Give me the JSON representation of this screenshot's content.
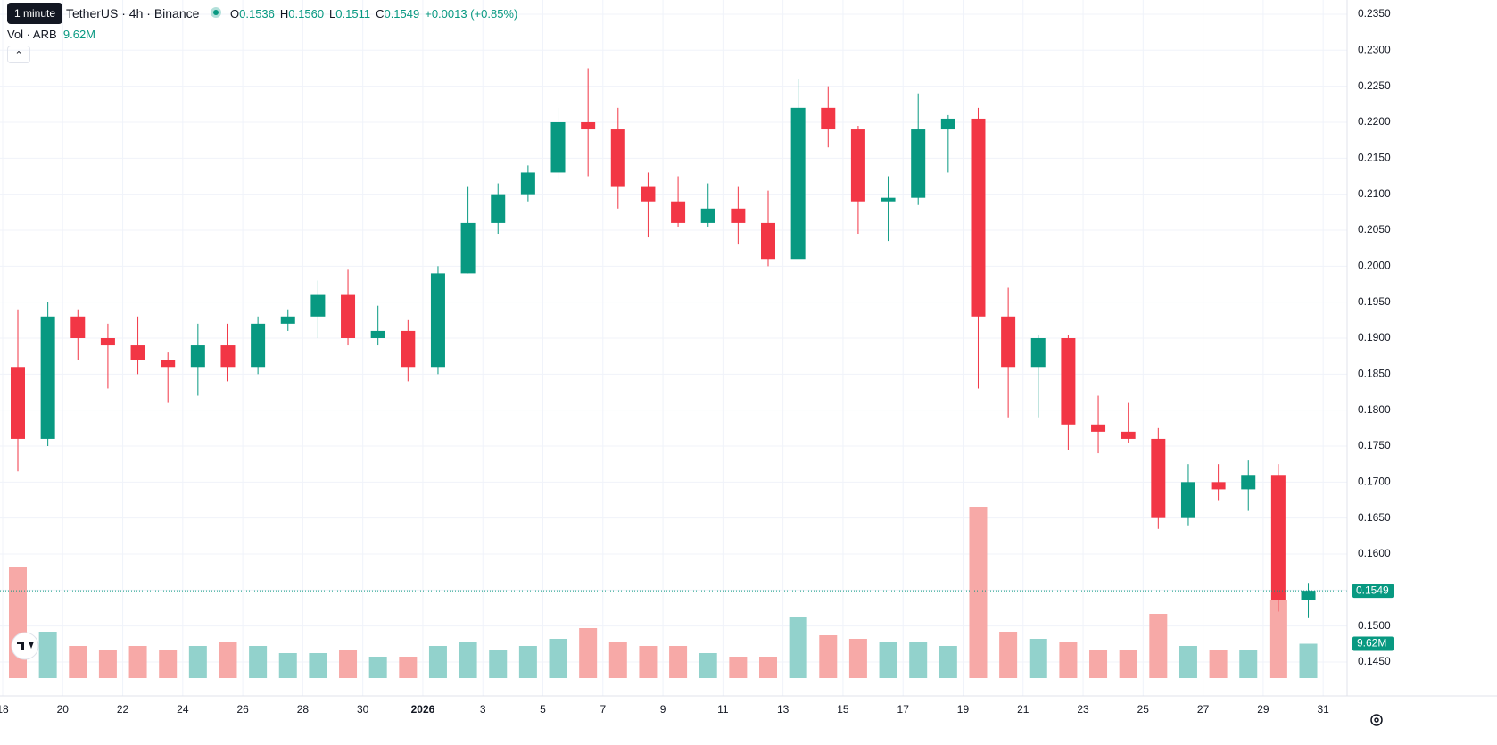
{
  "chart_data": {
    "type": "candlestick",
    "title": "TetherUS · 4h · Binance",
    "tooltip": "1 minute",
    "legend": [
      {
        "name": "O",
        "label": "0.1536"
      },
      {
        "name": "H",
        "label": "0.1560"
      },
      {
        "name": "L",
        "label": "0.1511"
      },
      {
        "name": "C",
        "label": "0.1549"
      }
    ],
    "change": "+0.0013 (+0.85%)",
    "categories": [
      "18",
      null,
      "20",
      null,
      "22",
      null,
      "24",
      null,
      "26",
      null,
      "28",
      null,
      "30",
      null,
      "2026",
      null,
      "3",
      null,
      "5",
      null,
      "7",
      null,
      "9",
      null,
      "11",
      null,
      "13",
      null,
      "15",
      null,
      "17",
      null,
      "19",
      null,
      "21",
      null,
      "23",
      null,
      "25",
      null,
      "27",
      null,
      "29",
      null,
      "31"
    ],
    "open": [
      0.186,
      0.176,
      0.193,
      0.19,
      0.189,
      0.187,
      0.186,
      0.189,
      0.186,
      0.192,
      0.193,
      0.196,
      0.19,
      0.191,
      0.186,
      0.199,
      0.206,
      0.21,
      0.213,
      0.22,
      0.219,
      0.211,
      0.209,
      0.206,
      0.208,
      0.206,
      0.201,
      0.222,
      0.219,
      0.209,
      0.2095,
      0.219,
      0.2205,
      0.193,
      0.186,
      0.19,
      0.178,
      0.177,
      0.176,
      0.165,
      0.17,
      0.169,
      0.171,
      0.1536,
      null
    ],
    "high": [
      0.194,
      0.195,
      0.194,
      0.192,
      0.193,
      0.188,
      0.192,
      0.192,
      0.193,
      0.194,
      0.198,
      0.1995,
      0.1945,
      0.1925,
      0.2,
      0.211,
      0.2115,
      0.214,
      0.222,
      0.2275,
      0.222,
      0.213,
      0.2125,
      0.2115,
      0.211,
      0.2105,
      0.226,
      0.225,
      0.2195,
      0.2125,
      0.224,
      0.221,
      0.222,
      0.197,
      0.1905,
      0.1905,
      0.182,
      0.181,
      0.1775,
      0.1725,
      0.1725,
      0.173,
      0.1725,
      0.156,
      null
    ],
    "low": [
      0.1715,
      0.175,
      0.187,
      0.183,
      0.185,
      0.181,
      0.182,
      0.184,
      0.185,
      0.191,
      0.19,
      0.189,
      0.189,
      0.184,
      0.185,
      0.199,
      0.2045,
      0.209,
      0.212,
      0.2125,
      0.208,
      0.204,
      0.2055,
      0.2055,
      0.203,
      0.2,
      0.2015,
      0.2165,
      0.2045,
      0.2035,
      0.2085,
      0.213,
      0.183,
      0.179,
      0.179,
      0.1745,
      0.174,
      0.1755,
      0.1635,
      0.164,
      0.1675,
      0.166,
      0.152,
      0.1511,
      null
    ],
    "close": [
      0.176,
      0.193,
      0.19,
      0.189,
      0.187,
      0.186,
      0.189,
      0.186,
      0.192,
      0.193,
      0.196,
      0.19,
      0.191,
      0.186,
      0.199,
      0.206,
      0.21,
      0.213,
      0.22,
      0.219,
      0.211,
      0.209,
      0.206,
      0.208,
      0.206,
      0.201,
      0.222,
      0.219,
      0.209,
      0.2095,
      0.219,
      0.2205,
      0.193,
      0.186,
      0.19,
      0.178,
      0.177,
      0.176,
      0.165,
      0.17,
      0.169,
      0.171,
      0.1536,
      0.1549,
      null
    ],
    "volume": {
      "name": "Vol · ARB",
      "values": [
        31,
        13,
        9,
        8,
        9,
        8,
        9,
        10,
        9,
        7,
        7,
        8,
        6,
        6,
        9,
        10,
        8,
        9,
        11,
        14,
        10,
        9,
        9,
        7,
        6,
        6,
        17,
        12,
        11,
        10,
        10,
        9,
        48,
        13,
        11,
        10,
        8,
        8,
        18,
        9,
        8,
        8,
        22,
        9.62,
        null
      ],
      "value_labels": [
        null,
        null,
        null,
        null,
        null,
        null,
        null,
        null,
        null,
        null,
        null,
        null,
        null,
        null,
        null,
        null,
        null,
        null,
        null,
        null,
        null,
        null,
        null,
        null,
        null,
        null,
        null,
        null,
        null,
        null,
        null,
        null,
        null,
        null,
        null,
        null,
        null,
        null,
        null,
        null,
        null,
        null,
        null,
        "9.62M",
        null
      ]
    },
    "up_color": "#089981",
    "down_color": "#f23645",
    "up_volume_color": "#92d2cc",
    "down_volume_color": "#f7a9a7",
    "ylim": [
      0.14277,
      0.23698
    ],
    "yticks": [
      {
        "value": 0.145,
        "label": "0.1450"
      },
      {
        "value": 0.15,
        "label": "0.1500"
      },
      {
        "value": 0.155,
        "label": "0.1550"
      },
      {
        "value": 0.16,
        "label": "0.1600"
      },
      {
        "value": 0.165,
        "label": "0.1650"
      },
      {
        "value": 0.17,
        "label": "0.1700"
      },
      {
        "value": 0.175,
        "label": "0.1750"
      },
      {
        "value": 0.18,
        "label": "0.1800"
      },
      {
        "value": 0.185,
        "label": "0.1850"
      },
      {
        "value": 0.19,
        "label": "0.1900"
      },
      {
        "value": 0.195,
        "label": "0.1950"
      },
      {
        "value": 0.2,
        "label": "0.2000"
      },
      {
        "value": 0.205,
        "label": "0.2050"
      },
      {
        "value": 0.21,
        "label": "0.2100"
      },
      {
        "value": 0.215,
        "label": "0.2150"
      },
      {
        "value": 0.22,
        "label": "0.2200"
      },
      {
        "value": 0.225,
        "label": "0.2250"
      },
      {
        "value": 0.23,
        "label": "0.2300"
      },
      {
        "value": 0.235,
        "label": "0.2350"
      }
    ],
    "y2lim": [
      0,
      190
    ],
    "grid": true
  }
}
